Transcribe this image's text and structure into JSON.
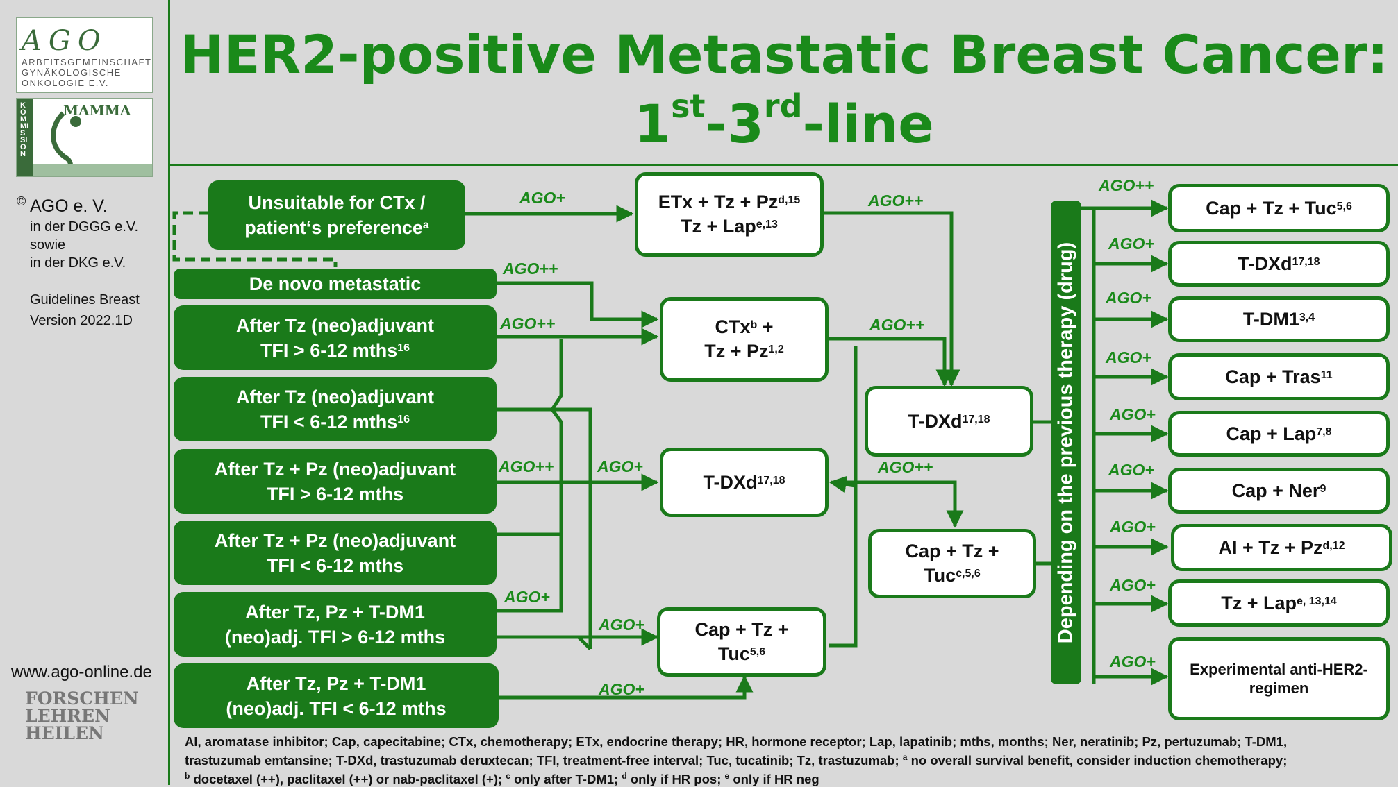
{
  "title": {
    "line1": "HER2-positive Metastatic Breast Cancer:",
    "line2_pre": "1",
    "line2_sup1": "st",
    "line2_mid": "-3",
    "line2_sup2": "rd",
    "line2_post": "-line"
  },
  "sidebar": {
    "logo_text": "AGO",
    "logo_sub1": "ARBEITSGEMEINSCHAFT",
    "logo_sub2": "GYNÄKOLOGISCHE",
    "logo_sub3": "ONKOLOGIE E.V.",
    "mamma_text": "MAMMA",
    "kommission_text": "KOMMISSION",
    "copyright_symbol": "©",
    "org": "AGO e. V.",
    "line1": "in der DGGG e.V.",
    "line2": "sowie",
    "line3": "in der DKG e.V.",
    "guidelines1": "Guidelines Breast",
    "guidelines2": "Version 2022.1D",
    "website": "www.ago-online.de",
    "motto1": "FORSCHEN",
    "motto2": "LEHREN",
    "motto3": "HEILEN"
  },
  "colors": {
    "green": "#1a7a1a",
    "title_green": "#1a8a1a",
    "background": "#d9d9d9"
  },
  "left_nodes": {
    "unsuitable": {
      "line1": "Unsuitable for CTx /",
      "line2": "patient‘s preference",
      "sup": "a"
    },
    "denovo": {
      "line1": "De novo metastatic"
    },
    "tz_gt": {
      "line1": "After Tz (neo)adjuvant",
      "line2": "TFI > 6-12 mths",
      "sup": "16"
    },
    "tz_lt": {
      "line1": "After Tz (neo)adjuvant",
      "line2": "TFI < 6-12 mths",
      "sup": "16"
    },
    "tzpz_gt": {
      "line1": "After Tz + Pz (neo)adjuvant",
      "line2": "TFI > 6-12 mths"
    },
    "tzpz_lt": {
      "line1": "After Tz + Pz (neo)adjuvant",
      "line2": "TFI < 6-12 mths"
    },
    "tdm1_gt": {
      "line1": "After Tz, Pz + T-DM1",
      "line2": "(neo)adj. TFI > 6-12 mths"
    },
    "tdm1_lt": {
      "line1": "After Tz, Pz + T-DM1",
      "line2": "(neo)adj. TFI < 6-12 mths"
    }
  },
  "mid_nodes": {
    "etx": {
      "line1": "ETx + Tz + Pz",
      "line1_sup": "d,15",
      "line2": "Tz + Lap",
      "line2_sup": "e,13"
    },
    "ctx": {
      "line1": "CTx",
      "line1_sup": "b",
      "line1_post": " +",
      "line2": "Tz + Pz",
      "line2_sup": "1,2"
    },
    "tdxd": {
      "line1": "T-DXd",
      "line1_sup": "17,18"
    },
    "cap": {
      "line1": "Cap + Tz +",
      "line2": "Tuc",
      "line2_sup": "5,6"
    }
  },
  "center_nodes": {
    "tdxd": {
      "line1": "T-DXd",
      "line1_sup": "17,18"
    },
    "cap": {
      "line1": "Cap + Tz +",
      "line2": "Tuc",
      "line2_sup": "c,5,6"
    }
  },
  "vbar_text": "Depending on the previous therapy (drug)",
  "right_nodes": [
    {
      "label": "Cap + Tz + Tuc",
      "sup": "5,6"
    },
    {
      "label": "T-DXd",
      "sup": "17,18"
    },
    {
      "label": "T-DM1",
      "sup": "3,4"
    },
    {
      "label": "Cap + Tras",
      "sup": "11"
    },
    {
      "label": "Cap + Lap",
      "sup": "7,8"
    },
    {
      "label": "Cap + Ner",
      "sup": "9"
    },
    {
      "label": "AI + Tz + Pz",
      "sup": "d,12"
    },
    {
      "label": "Tz + Lap",
      "sup": "e, 13,14"
    },
    {
      "label": "Experimental anti-HER2-regimen",
      "sup": ""
    }
  ],
  "edge_labels": {
    "unsuitable_etx": "AGO+",
    "etx_tdxd": "AGO++",
    "denovo_ctx": "AGO++",
    "tzgt_ctx": "AGO++",
    "ctx_tdxd": "AGO++",
    "tzpz_tdxd1": "AGO++",
    "tzpz_tdxd2": "AGO+",
    "tdxd_cap": "AGO++",
    "tdm1_up": "AGO+",
    "tdm1gt_cap": "AGO+",
    "tdm1lt_cap": "AGO+",
    "right": [
      "AGO++",
      "AGO+",
      "AGO+",
      "AGO+",
      "AGO+",
      "AGO+",
      "AGO+",
      "AGO+",
      "AGO+"
    ]
  },
  "footnote": {
    "line1": "AI, aromatase inhibitor; Cap, capecitabine; CTx, chemotherapy; ETx, endocrine therapy; HR, hormone receptor; Lap, lapatinib; mths, months; Ner, neratinib; Pz, pertuzumab; T-DM1,",
    "line2a": "trastuzumab emtansine; T-DXd, trastuzumab deruxtecan; TFI, treatment-free interval; Tuc, tucatinib; Tz, trastuzumab; ",
    "line2sup": "a",
    "line2b": " no overall survival benefit, consider induction chemotherapy;",
    "line3sup1": "b",
    "line3a": " docetaxel (++), paclitaxel (++) or nab-paclitaxel (+); ",
    "line3sup2": "c",
    "line3b": " only after T-DM1; ",
    "line3sup3": "d",
    "line3c": " only if HR pos; ",
    "line3sup4": "e",
    "line3d": " only if HR neg"
  }
}
